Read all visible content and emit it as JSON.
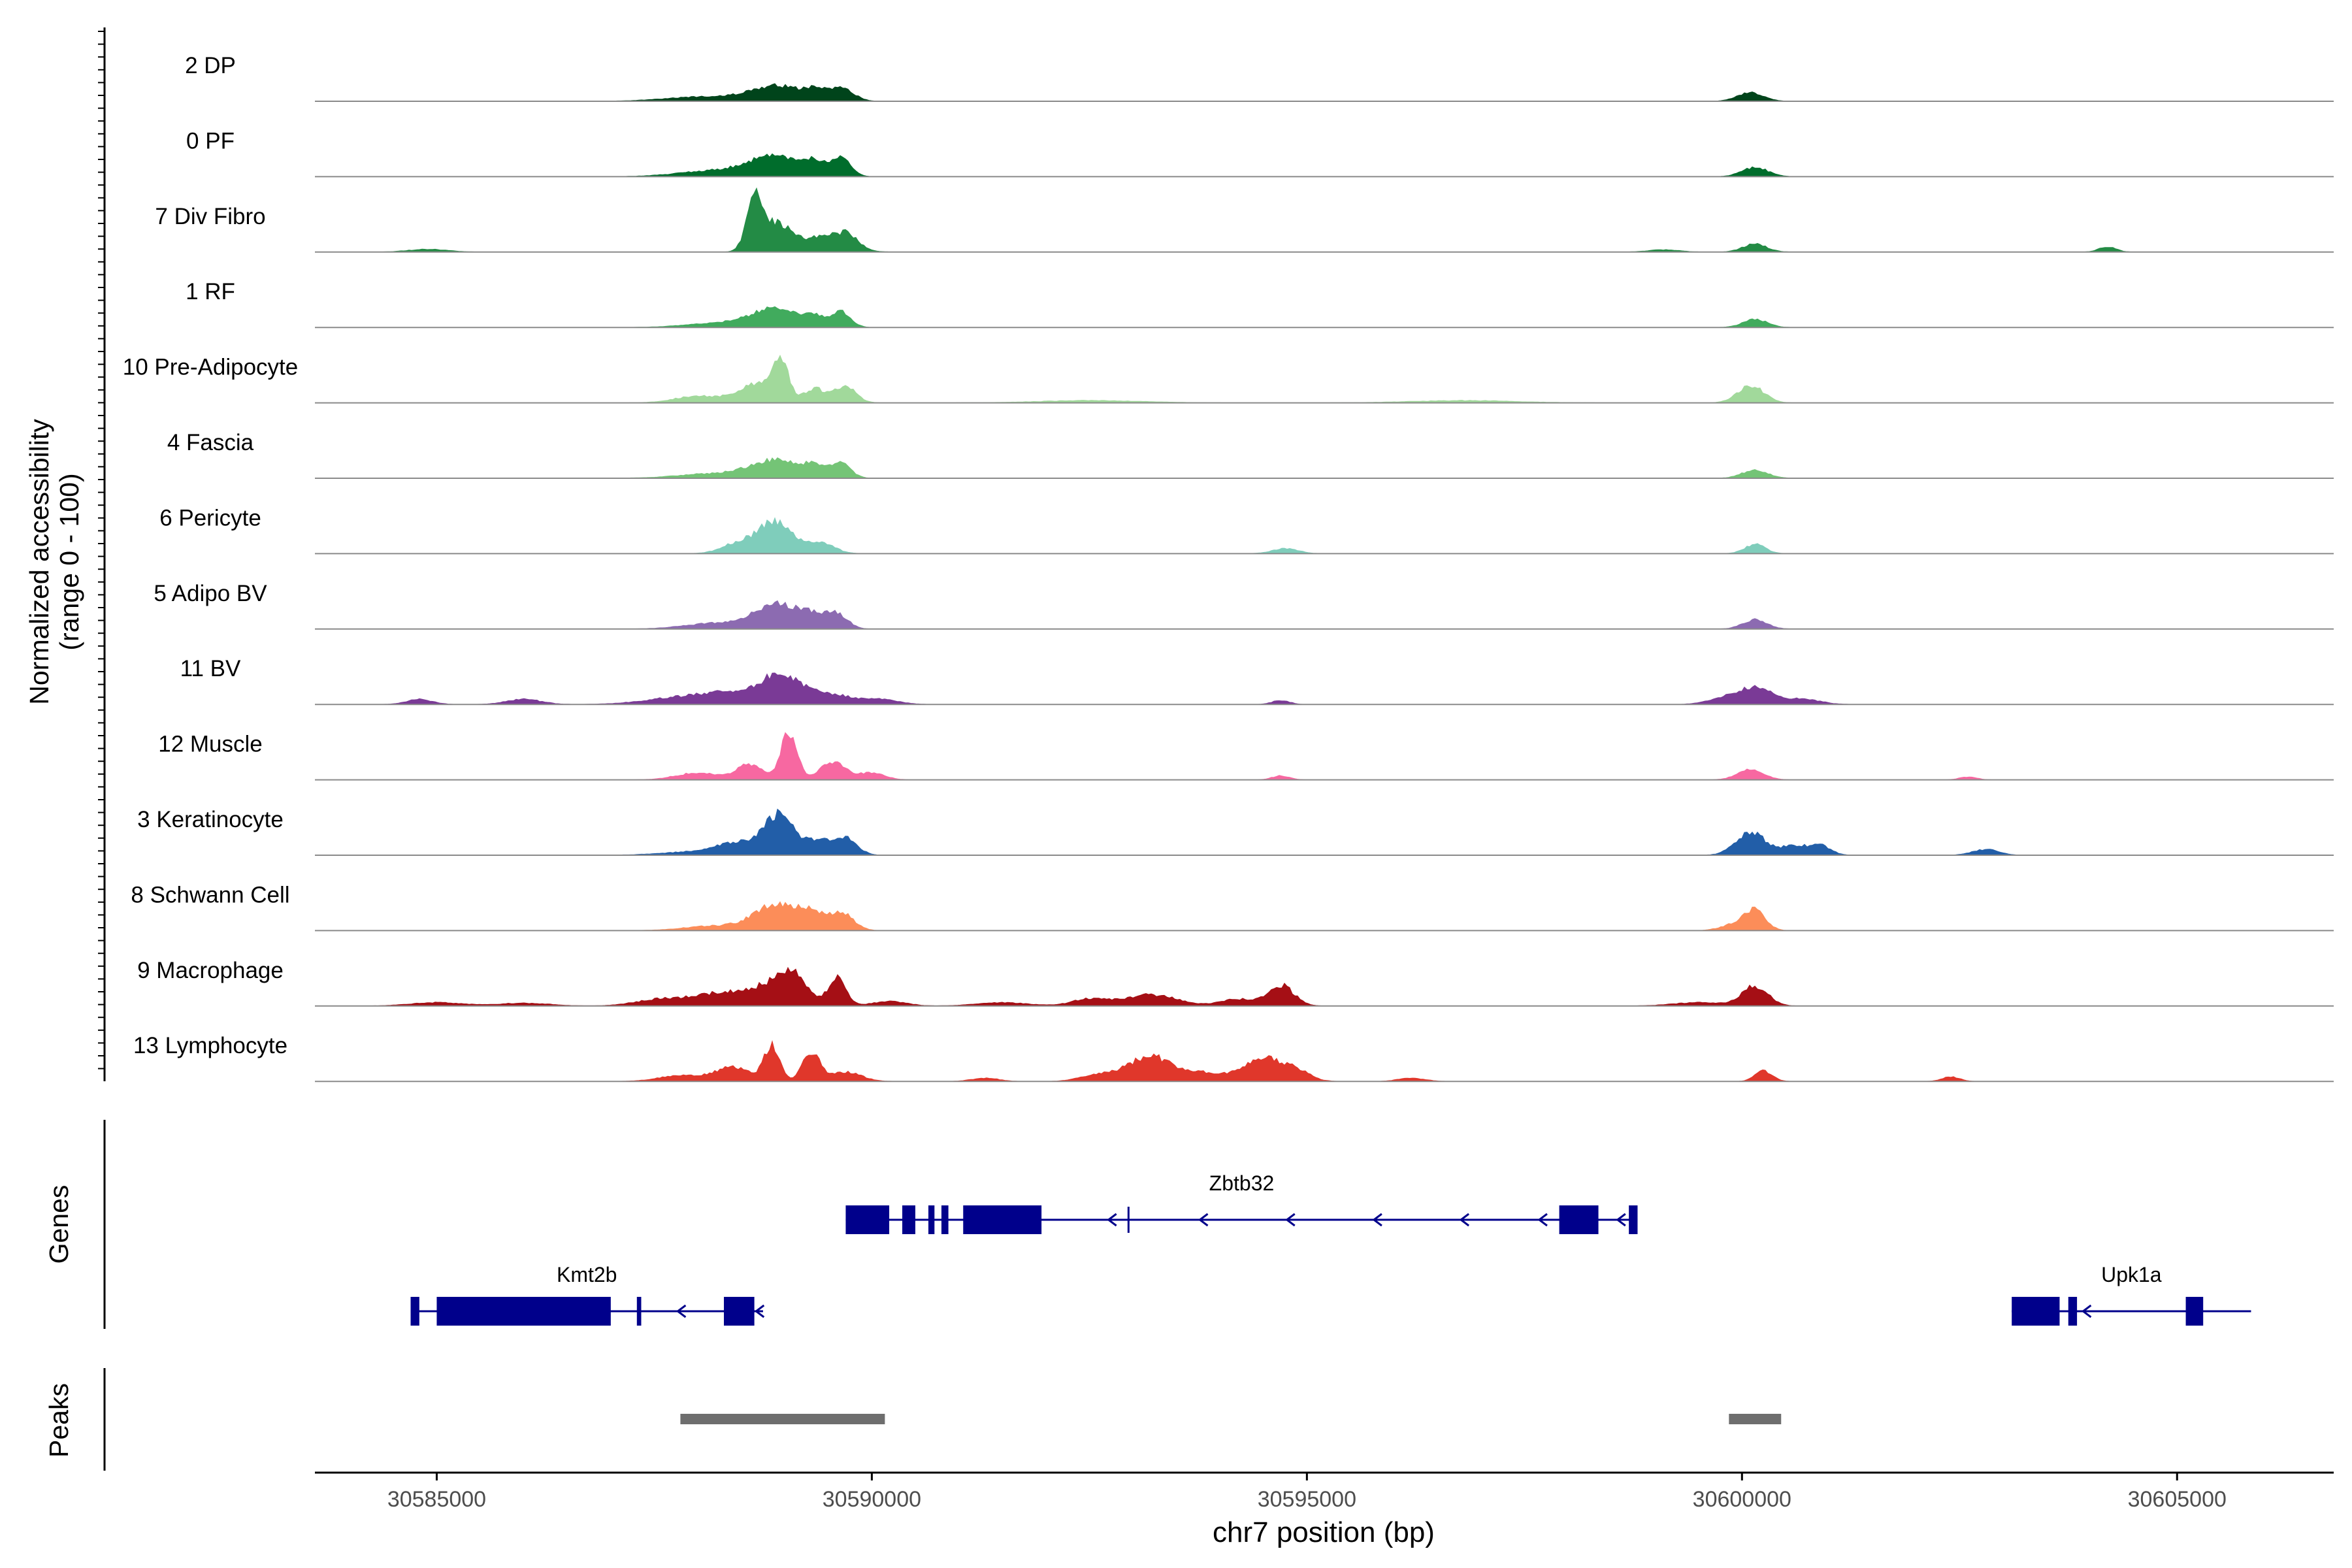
{
  "chart_data": {
    "type": "area",
    "title": "",
    "ylabel_lines": [
      "Normalized accessibility",
      "(range 0 - 100)"
    ],
    "xlabel": "chr7 position (bp)",
    "xlim": [
      30583600,
      30606800
    ],
    "ylim": [
      0,
      100
    ],
    "x_ticks": [
      30585000,
      30590000,
      30595000,
      30600000,
      30605000
    ],
    "x_tick_labels": [
      "30585000",
      "30590000",
      "30595000",
      "30600000",
      "30605000"
    ],
    "tracks": [
      {
        "name": "2 DP",
        "color": "#00441b",
        "peaks": [
          [
            30588900,
            280,
            26
          ],
          [
            30589350,
            130,
            16
          ],
          [
            30589650,
            140,
            22
          ],
          [
            30588100,
            450,
            8
          ],
          [
            30600100,
            150,
            15
          ]
        ]
      },
      {
        "name": "0 PF",
        "color": "#006d2c",
        "peaks": [
          [
            30588900,
            300,
            34
          ],
          [
            30589350,
            130,
            20
          ],
          [
            30589650,
            110,
            30
          ],
          [
            30588200,
            420,
            10
          ],
          [
            30600150,
            150,
            16
          ]
        ]
      },
      {
        "name": "7 Div Fibro",
        "color": "#238b45",
        "peaks": [
          [
            30588650,
            90,
            84
          ],
          [
            30588900,
            180,
            50
          ],
          [
            30589500,
            230,
            30
          ],
          [
            30589750,
            100,
            16
          ],
          [
            30584900,
            220,
            5
          ],
          [
            30599100,
            180,
            4
          ],
          [
            30600150,
            140,
            14
          ],
          [
            30604200,
            100,
            9
          ]
        ]
      },
      {
        "name": "1 RF",
        "color": "#41ab5d",
        "peaks": [
          [
            30588900,
            260,
            32
          ],
          [
            30589350,
            120,
            16
          ],
          [
            30589650,
            110,
            26
          ],
          [
            30588300,
            400,
            8
          ],
          [
            30600150,
            140,
            14
          ]
        ]
      },
      {
        "name": "10 Pre-Adipocyte",
        "color": "#a1d99b",
        "peaks": [
          [
            30588950,
            90,
            68
          ],
          [
            30588700,
            220,
            34
          ],
          [
            30589350,
            120,
            24
          ],
          [
            30589700,
            120,
            30
          ],
          [
            30588000,
            260,
            12
          ],
          [
            30600100,
            150,
            30
          ],
          [
            30592500,
            600,
            4
          ],
          [
            30596800,
            600,
            4
          ]
        ]
      },
      {
        "name": "4 Fascia",
        "color": "#74c476",
        "peaks": [
          [
            30588900,
            280,
            30
          ],
          [
            30589350,
            120,
            18
          ],
          [
            30589650,
            110,
            26
          ],
          [
            30588200,
            420,
            8
          ],
          [
            30600150,
            150,
            14
          ]
        ]
      },
      {
        "name": "6 Pericyte",
        "color": "#7fcdbb",
        "peaks": [
          [
            30588900,
            180,
            54
          ],
          [
            30588500,
            200,
            20
          ],
          [
            30589400,
            160,
            20
          ],
          [
            30594750,
            150,
            9
          ],
          [
            30600150,
            120,
            16
          ]
        ]
      },
      {
        "name": "5 Adipo BV",
        "color": "#8c6bb1",
        "peaks": [
          [
            30588900,
            260,
            42
          ],
          [
            30589300,
            150,
            18
          ],
          [
            30589600,
            120,
            26
          ],
          [
            30588200,
            350,
            10
          ],
          [
            30600150,
            140,
            16
          ]
        ]
      },
      {
        "name": "11 BV",
        "color": "#7a3a96",
        "peaks": [
          [
            30588950,
            220,
            50
          ],
          [
            30588400,
            300,
            18
          ],
          [
            30587800,
            400,
            12
          ],
          [
            30589500,
            250,
            18
          ],
          [
            30590100,
            200,
            9
          ],
          [
            30600150,
            200,
            28
          ],
          [
            30599800,
            200,
            9
          ],
          [
            30600700,
            200,
            9
          ],
          [
            30584800,
            150,
            9
          ],
          [
            30586000,
            200,
            9
          ],
          [
            30594700,
            100,
            7
          ]
        ]
      },
      {
        "name": "12 Muscle",
        "color": "#f768a1",
        "peaks": [
          [
            30589050,
            90,
            84
          ],
          [
            30588600,
            150,
            26
          ],
          [
            30589550,
            150,
            30
          ],
          [
            30588000,
            250,
            12
          ],
          [
            30590000,
            150,
            12
          ],
          [
            30600100,
            150,
            18
          ],
          [
            30594700,
            100,
            7
          ],
          [
            30602600,
            100,
            5
          ]
        ]
      },
      {
        "name": "3 Keratinocyte",
        "color": "#225ea8",
        "peaks": [
          [
            30588950,
            170,
            68
          ],
          [
            30588500,
            250,
            20
          ],
          [
            30589400,
            140,
            24
          ],
          [
            30589700,
            130,
            30
          ],
          [
            30600100,
            170,
            40
          ],
          [
            30600600,
            150,
            16
          ],
          [
            30600900,
            120,
            16
          ],
          [
            30602800,
            150,
            10
          ],
          [
            30588000,
            400,
            6
          ]
        ]
      },
      {
        "name": "8 Schwann Cell",
        "color": "#fc8d59",
        "peaks": [
          [
            30588900,
            250,
            44
          ],
          [
            30589300,
            150,
            24
          ],
          [
            30589650,
            140,
            30
          ],
          [
            30588200,
            350,
            8
          ],
          [
            30600150,
            120,
            34
          ],
          [
            30599900,
            150,
            10
          ]
        ]
      },
      {
        "name": "9 Macrophage",
        "color": "#a50f15",
        "peaks": [
          [
            30589600,
            100,
            48
          ],
          [
            30588900,
            250,
            36
          ],
          [
            30588300,
            300,
            22
          ],
          [
            30587600,
            300,
            12
          ],
          [
            30589100,
            150,
            34
          ],
          [
            30594700,
            150,
            36
          ],
          [
            30594200,
            200,
            12
          ],
          [
            30593200,
            300,
            20
          ],
          [
            30592500,
            200,
            12
          ],
          [
            30591500,
            300,
            6
          ],
          [
            30600150,
            150,
            34
          ],
          [
            30599500,
            300,
            6
          ],
          [
            30585000,
            300,
            6
          ],
          [
            30586000,
            300,
            5
          ],
          [
            30590200,
            200,
            8
          ]
        ]
      },
      {
        "name": "13 Lymphocyte",
        "color": "#e0372b",
        "peaks": [
          [
            30588850,
            90,
            60
          ],
          [
            30589300,
            100,
            50
          ],
          [
            30588400,
            200,
            24
          ],
          [
            30587800,
            250,
            10
          ],
          [
            30589700,
            180,
            16
          ],
          [
            30593200,
            250,
            44
          ],
          [
            30592600,
            200,
            12
          ],
          [
            30593800,
            200,
            14
          ],
          [
            30594500,
            250,
            40
          ],
          [
            30594900,
            150,
            12
          ],
          [
            30600250,
            100,
            18
          ],
          [
            30602400,
            100,
            8
          ],
          [
            30596200,
            150,
            6
          ],
          [
            30591300,
            150,
            6
          ]
        ]
      }
    ],
    "genes": [
      {
        "name": "Zbtb32",
        "strand": "-",
        "start": 30589700,
        "end": 30598800,
        "exons": [
          [
            30589700,
            30590200
          ],
          [
            30590350,
            30590500
          ],
          [
            30590650,
            30590720
          ],
          [
            30590800,
            30590880
          ],
          [
            30591050,
            30591950
          ],
          [
            30597900,
            30598350
          ],
          [
            30598700,
            30598800
          ]
        ],
        "arrows": [
          30592750,
          30593800,
          30594800,
          30595800,
          30596800,
          30597700,
          30598600
        ],
        "tick": 30592950
      },
      {
        "name": "Kmt2b",
        "strand": "-",
        "start": 30584700,
        "end": 30588750,
        "exons": [
          [
            30584700,
            30584800
          ],
          [
            30585000,
            30587000
          ],
          [
            30587300,
            30587350
          ],
          [
            30588300,
            30588650
          ]
        ],
        "arrows": [
          30587800,
          30588700
        ]
      },
      {
        "name": "Upk1a",
        "strand": "-",
        "start": 30603100,
        "end": 30605850,
        "exons": [
          [
            30603100,
            30603650
          ],
          [
            30603750,
            30603850
          ],
          [
            30605100,
            30605300
          ]
        ],
        "arrows": [
          30603950
        ]
      }
    ],
    "gene_panel_label": "Genes",
    "peaks_panel_label": "Peaks",
    "peak_regions": [
      [
        30587800,
        30590150
      ],
      [
        30599850,
        30600450
      ]
    ]
  }
}
